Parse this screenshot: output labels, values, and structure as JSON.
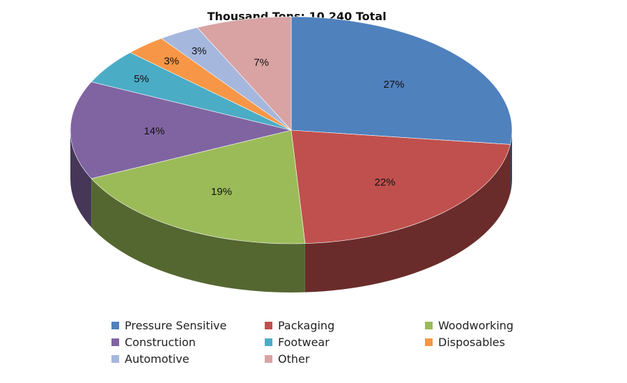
{
  "chart_data": {
    "type": "pie",
    "style": "3d",
    "title": "Thousand Tons: 10,240 Total",
    "categories": [
      "Pressure Sensitive",
      "Packaging",
      "Woodworking",
      "Construction",
      "Footwear",
      "Disposables",
      "Automotive",
      "Other"
    ],
    "values": [
      27,
      22,
      19,
      14,
      5,
      3,
      3,
      7
    ],
    "labels": [
      "27%",
      "22%",
      "19%",
      "14%",
      "5%",
      "3%",
      "3%",
      "7%"
    ],
    "colors": [
      "#4f81bd",
      "#c0504d",
      "#9bbb59",
      "#8064a2",
      "#4bacc6",
      "#f79646",
      "#a5b7dd",
      "#d9a3a3"
    ],
    "legend_position": "bottom"
  }
}
